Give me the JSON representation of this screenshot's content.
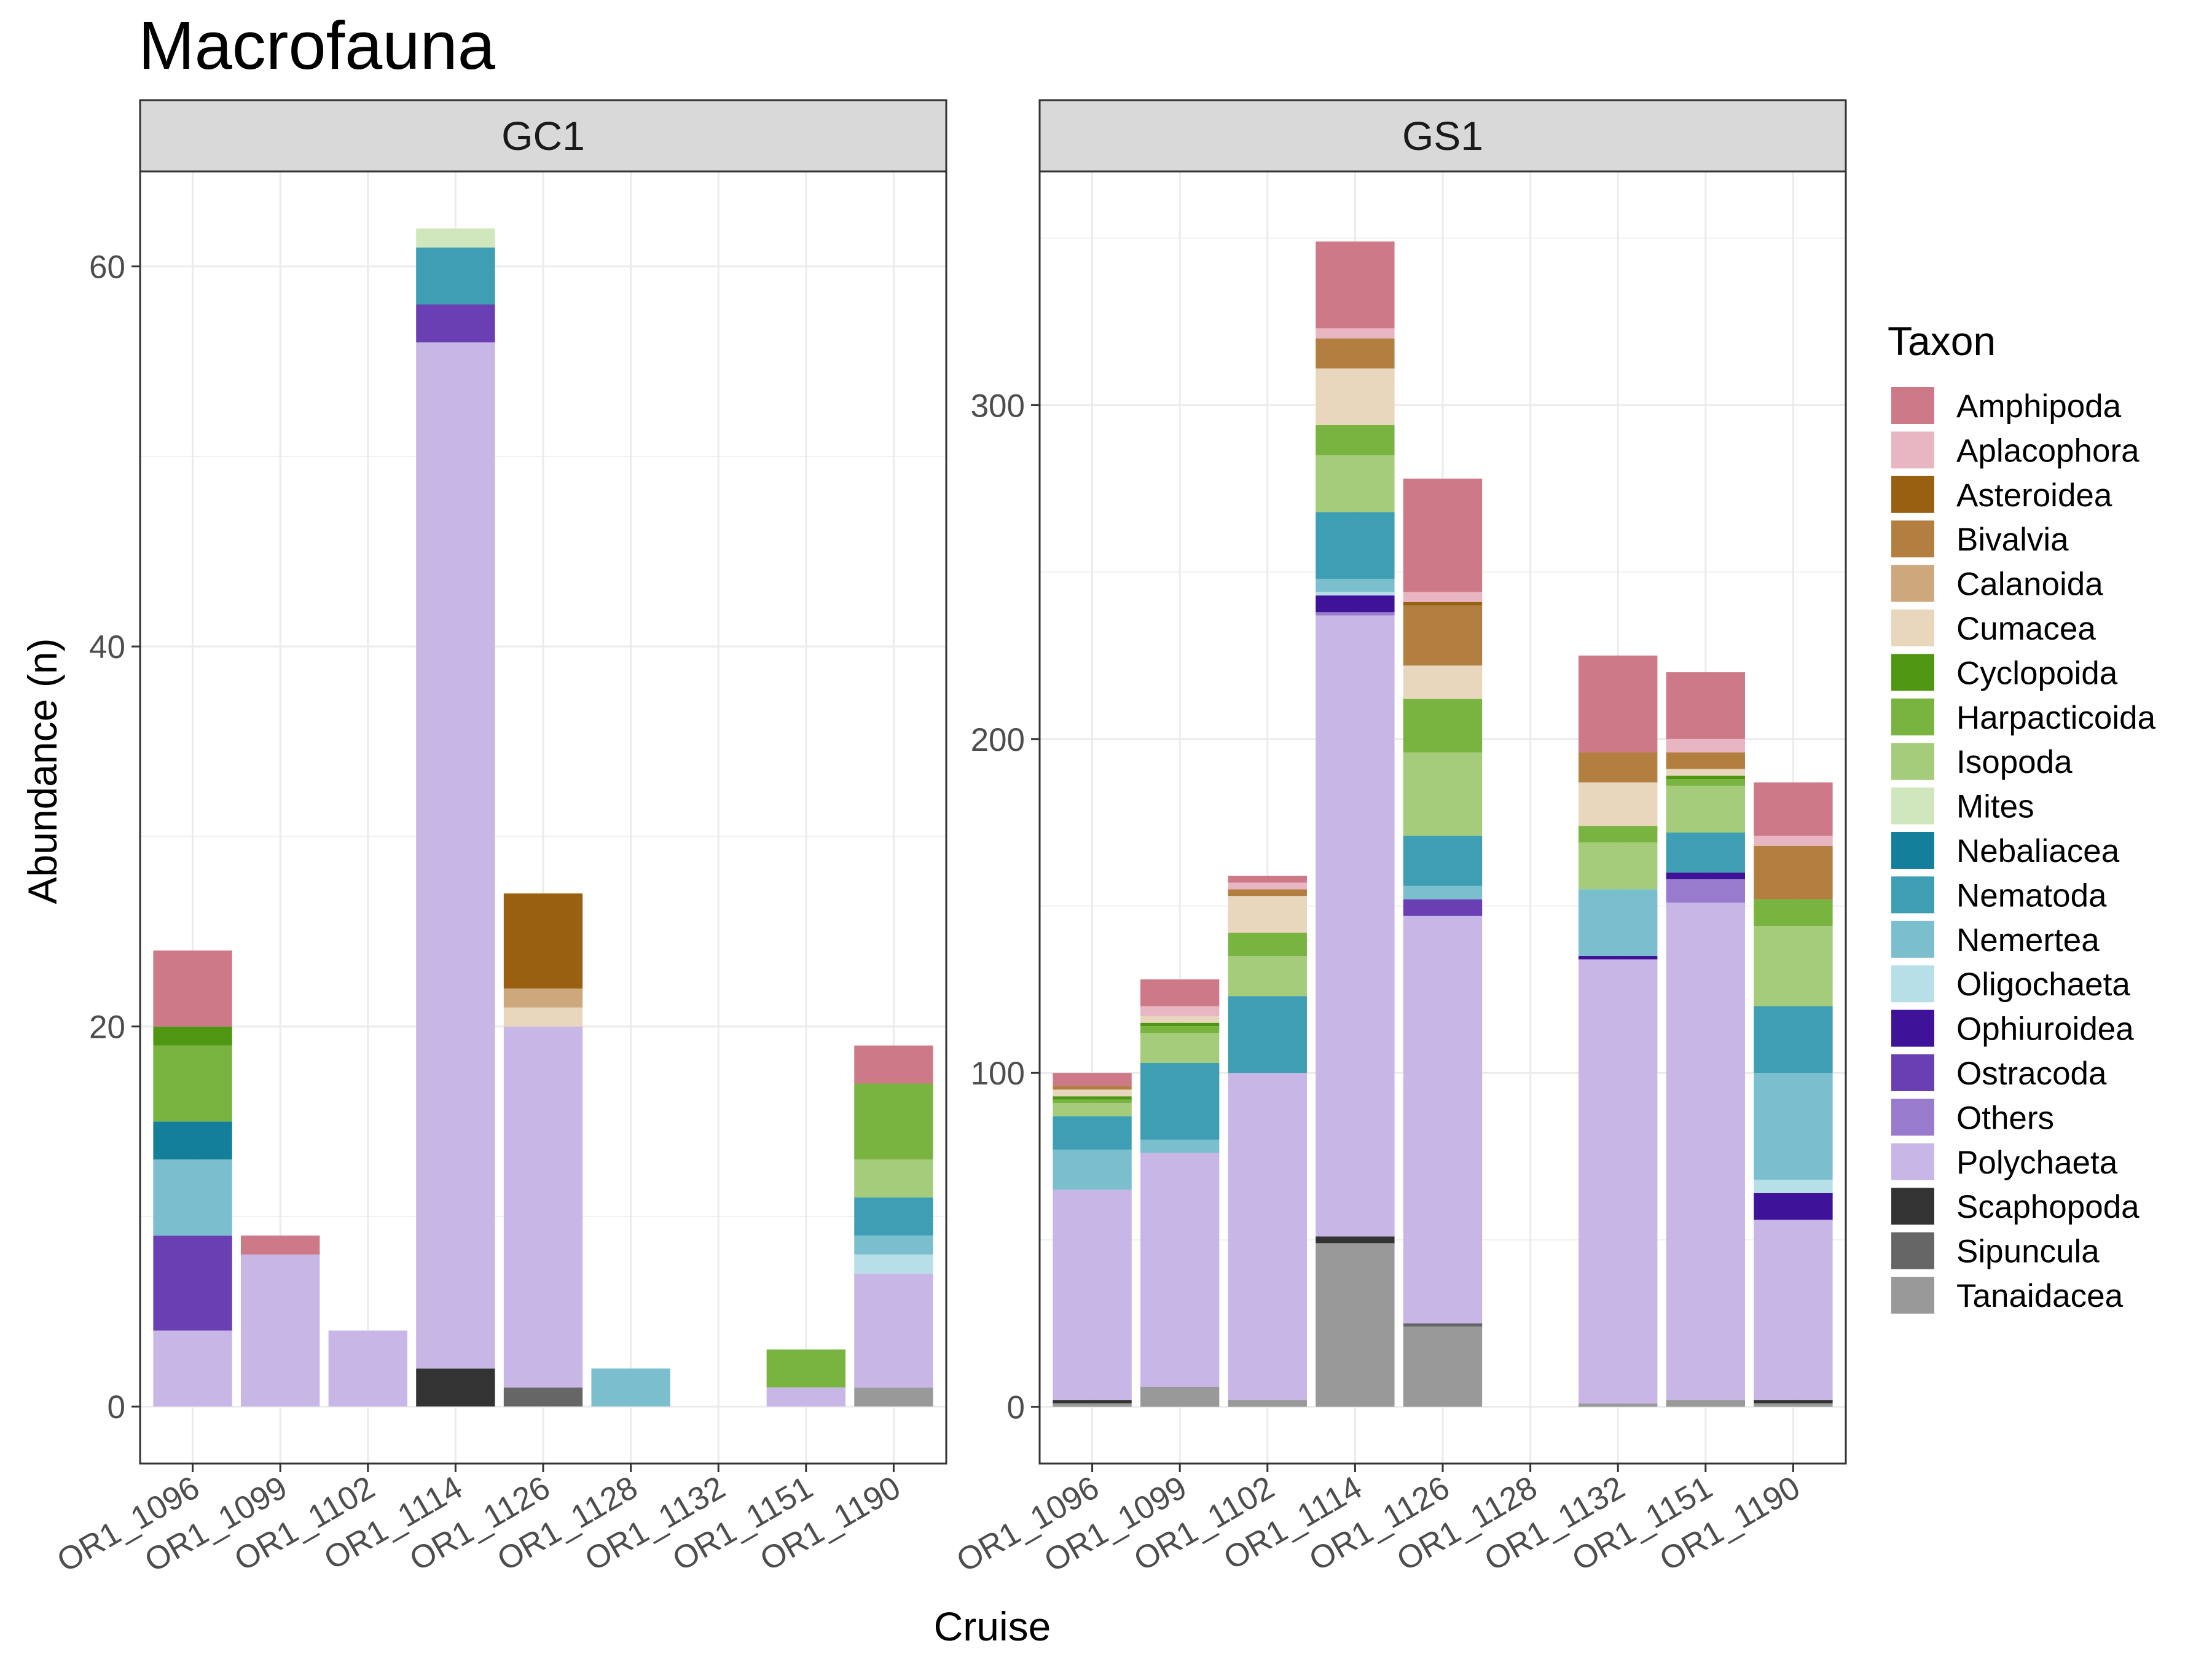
{
  "chart_data": {
    "type": "bar",
    "stacked": true,
    "title": "Macrofauna",
    "xlabel": "Cruise",
    "ylabel": "Abundance (n)",
    "categories": [
      "OR1_1096",
      "OR1_1099",
      "OR1_1102",
      "OR1_1114",
      "OR1_1126",
      "OR1_1128",
      "OR1_1132",
      "OR1_1151",
      "OR1_1190"
    ],
    "legend": {
      "title": "Taxon",
      "position": "right",
      "entries": [
        {
          "name": "Amphipoda",
          "color": "#CD7987"
        },
        {
          "name": "Aplacophora",
          "color": "#E8B6C2"
        },
        {
          "name": "Asteroidea",
          "color": "#9A6011"
        },
        {
          "name": "Bivalvia",
          "color": "#B37F41"
        },
        {
          "name": "Calanoida",
          "color": "#CDA87C"
        },
        {
          "name": "Cumacea",
          "color": "#E8D6BD"
        },
        {
          "name": "Cyclopoida",
          "color": "#4F9712"
        },
        {
          "name": "Harpacticoida",
          "color": "#78B43F"
        },
        {
          "name": "Isopoda",
          "color": "#A4CC7A"
        },
        {
          "name": "Mites",
          "color": "#D0E6BC"
        },
        {
          "name": "Nebaliacea",
          "color": "#137F9A"
        },
        {
          "name": "Nematoda",
          "color": "#3E9EB3"
        },
        {
          "name": "Nemertea",
          "color": "#7BBFCE"
        },
        {
          "name": "Oligochaeta",
          "color": "#B7DFE8"
        },
        {
          "name": "Ophiuroidea",
          "color": "#3F129A"
        },
        {
          "name": "Ostracoda",
          "color": "#6A3FB3"
        },
        {
          "name": "Others",
          "color": "#987BCC"
        },
        {
          "name": "Polychaeta",
          "color": "#C8B7E6"
        },
        {
          "name": "Scaphopoda",
          "color": "#333333"
        },
        {
          "name": "Sipuncula",
          "color": "#666666"
        },
        {
          "name": "Tanaidacea",
          "color": "#999999"
        }
      ]
    },
    "grid": true,
    "panels": [
      {
        "label": "GC1",
        "ylim": [
          -3,
          65
        ],
        "yticks": [
          0,
          20,
          40,
          60
        ],
        "stacks": {
          "OR1_1096": {
            "Polychaeta": 4,
            "Ostracoda": 5,
            "Nemertea": 4,
            "Nebaliacea": 2,
            "Harpacticoida": 4,
            "Cyclopoida": 1,
            "Amphipoda": 4
          },
          "OR1_1099": {
            "Polychaeta": 8,
            "Amphipoda": 1
          },
          "OR1_1102": {
            "Polychaeta": 4
          },
          "OR1_1114": {
            "Scaphopoda": 2,
            "Polychaeta": 54,
            "Ostracoda": 2,
            "Nematoda": 3,
            "Mites": 1
          },
          "OR1_1126": {
            "Sipuncula": 1,
            "Polychaeta": 19,
            "Cumacea": 1,
            "Calanoida": 1,
            "Asteroidea": 5
          },
          "OR1_1128": {
            "Nemertea": 2
          },
          "OR1_1132": {},
          "OR1_1151": {
            "Polychaeta": 1,
            "Harpacticoida": 2
          },
          "OR1_1190": {
            "Tanaidacea": 1,
            "Polychaeta": 6,
            "Oligochaeta": 1,
            "Nemertea": 1,
            "Nematoda": 2,
            "Isopoda": 2,
            "Harpacticoida": 4,
            "Amphipoda": 2
          }
        }
      },
      {
        "label": "GS1",
        "ylim": [
          -17,
          370
        ],
        "yticks": [
          0,
          100,
          200,
          300
        ],
        "stacks": {
          "OR1_1096": {
            "Tanaidacea": 1,
            "Scaphopoda": 1,
            "Polychaeta": 63,
            "Nemertea": 12,
            "Nematoda": 10,
            "Harpacticoida": 1,
            "Isopoda": 4,
            "Cyclopoida": 1,
            "Cumacea": 2,
            "Bivalvia": 1,
            "Amphipoda": 4
          },
          "OR1_1099": {
            "Tanaidacea": 6,
            "Polychaeta": 70,
            "Nemertea": 4,
            "Nematoda": 23,
            "Isopoda": 9,
            "Harpacticoida": 2,
            "Cyclopoida": 1,
            "Cumacea": 2,
            "Aplacophora": 3,
            "Amphipoda": 8
          },
          "OR1_1102": {
            "Tanaidacea": 2,
            "Polychaeta": 98,
            "Nematoda": 23,
            "Isopoda": 12,
            "Harpacticoida": 7,
            "Cumacea": 11,
            "Bivalvia": 2,
            "Aplacophora": 2,
            "Amphipoda": 2
          },
          "OR1_1114": {
            "Tanaidacea": 49,
            "Scaphopoda": 2,
            "Polychaeta": 186,
            "Others": 1,
            "Ophiuroidea": 5,
            "Oligochaeta": 1,
            "Nemertea": 4,
            "Nematoda": 20,
            "Isopoda": 17,
            "Harpacticoida": 9,
            "Cumacea": 17,
            "Bivalvia": 9,
            "Aplacophora": 3,
            "Amphipoda": 26
          },
          "OR1_1126": {
            "Tanaidacea": 24,
            "Sipuncula": 1,
            "Polychaeta": 122,
            "Ostracoda": 5,
            "Nemertea": 4,
            "Nematoda": 15,
            "Isopoda": 25,
            "Harpacticoida": 16,
            "Cumacea": 10,
            "Bivalvia": 18,
            "Asteroidea": 1,
            "Aplacophora": 3,
            "Amphipoda": 34
          },
          "OR1_1128": {},
          "OR1_1132": {
            "Tanaidacea": 1,
            "Polychaeta": 133,
            "Ophiuroidea": 1,
            "Nemertea": 20,
            "Isopoda": 14,
            "Harpacticoida": 5,
            "Cumacea": 13,
            "Bivalvia": 9,
            "Amphipoda": 29
          },
          "OR1_1151": {
            "Tanaidacea": 2,
            "Polychaeta": 149,
            "Others": 7,
            "Ophiuroidea": 2,
            "Nematoda": 12,
            "Isopoda": 14,
            "Harpacticoida": 2,
            "Cyclopoida": 1,
            "Cumacea": 2,
            "Bivalvia": 5,
            "Aplacophora": 4,
            "Amphipoda": 20
          },
          "OR1_1190": {
            "Tanaidacea": 1,
            "Scaphopoda": 1,
            "Polychaeta": 54,
            "Ophiuroidea": 8,
            "Oligochaeta": 4,
            "Nemertea": 32,
            "Nematoda": 20,
            "Isopoda": 24,
            "Harpacticoida": 8,
            "Bivalvia": 16,
            "Aplacophora": 3,
            "Amphipoda": 16
          }
        }
      }
    ]
  }
}
